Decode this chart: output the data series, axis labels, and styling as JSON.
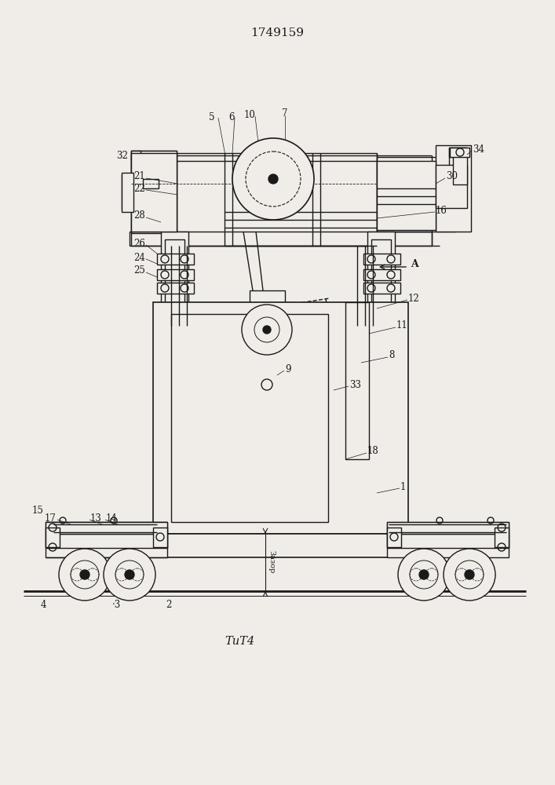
{
  "title": "1749159",
  "fig_label": "ΤиТ4",
  "gap_label": "Зазор",
  "background_color": "#f0ede8",
  "line_color": "#1a1a1a",
  "lw": 1.0,
  "title_fontsize": 11,
  "label_fontsize": 8.5
}
